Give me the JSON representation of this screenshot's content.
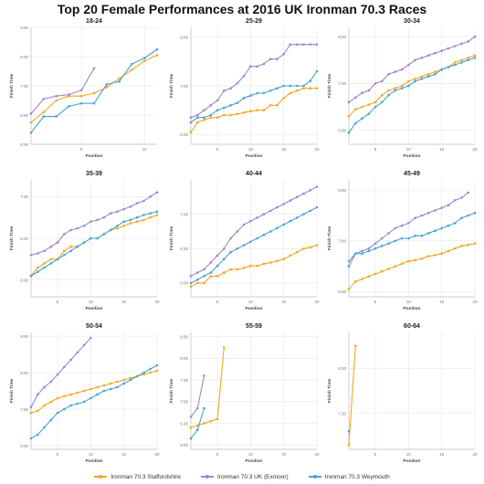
{
  "title": "Top 20 Female Performances at 2016 UK Ironman 70.3 Races",
  "colors": {
    "staffordshire": "#f5a623",
    "exmoor": "#9b87d0",
    "weymouth": "#4aa3d6",
    "grid": "#e6e6e6",
    "axis": "#bbbbbb"
  },
  "legend": [
    {
      "label": "Ironman 70.3 Staffordshire",
      "color": "#f5a623"
    },
    {
      "label": "Ironman 70.3 UK (Exmoor)",
      "color": "#9b87d0"
    },
    {
      "label": "Ironman 70.3 Weymouth",
      "color": "#4aa3d6"
    }
  ],
  "chart_data": [
    {
      "type": "line",
      "title": "18-24",
      "xlabel": "Position",
      "ylabel": "Finish Time",
      "xlim": [
        1,
        11
      ],
      "xticks": [
        5,
        10
      ],
      "ylim": [
        5,
        9
      ],
      "yticks": [
        {
          "v": 5,
          "label": "5:00"
        },
        {
          "v": 6,
          "label": "6:00"
        },
        {
          "v": 7,
          "label": "7:00"
        },
        {
          "v": 8,
          "label": "8:00"
        },
        {
          "v": 9,
          "label": "9:00"
        }
      ],
      "series": [
        {
          "name": "Ironman 70.3 Staffordshire",
          "values": [
            5.75,
            6.1,
            6.5,
            6.65,
            6.65,
            6.75,
            6.95,
            7.25,
            7.55,
            7.85,
            8.05
          ]
        },
        {
          "name": "Ironman 70.3 UK (Exmoor)",
          "values": [
            6.05,
            6.55,
            6.65,
            6.7,
            6.85,
            7.6
          ]
        },
        {
          "name": "Ironman 70.3 Weymouth",
          "values": [
            5.4,
            5.95,
            5.95,
            6.3,
            6.4,
            6.4,
            7.05,
            7.15,
            7.75,
            7.95,
            8.25
          ]
        }
      ]
    },
    {
      "type": "line",
      "title": "25-29",
      "xlabel": "Position",
      "ylabel": "Finish Time",
      "xlim": [
        1,
        20
      ],
      "xticks": [
        5,
        10,
        15,
        20
      ],
      "ylim": [
        5.8,
        8.2
      ],
      "yticks": [
        {
          "v": 6,
          "label": "6:00"
        },
        {
          "v": 7,
          "label": "7:00"
        },
        {
          "v": 8,
          "label": "8:00"
        }
      ],
      "series": [
        {
          "name": "Ironman 70.3 Staffordshire",
          "values": [
            6.05,
            6.25,
            6.3,
            6.35,
            6.35,
            6.4,
            6.4,
            6.42,
            6.45,
            6.48,
            6.5,
            6.5,
            6.6,
            6.6,
            6.75,
            6.85,
            6.9,
            6.95,
            6.95,
            6.95
          ]
        },
        {
          "name": "Ironman 70.3 UK (Exmoor)",
          "values": [
            6.35,
            6.4,
            6.5,
            6.6,
            6.7,
            6.9,
            6.95,
            7.05,
            7.2,
            7.4,
            7.4,
            7.45,
            7.55,
            7.55,
            7.65,
            7.85,
            7.85,
            7.85,
            7.85,
            7.85
          ]
        },
        {
          "name": "Ironman 70.3 Weymouth",
          "values": [
            6.25,
            6.35,
            6.35,
            6.4,
            6.5,
            6.55,
            6.6,
            6.65,
            6.75,
            6.8,
            6.85,
            6.85,
            6.9,
            6.95,
            7.0,
            7.0,
            7.0,
            7.0,
            7.1,
            7.3
          ]
        }
      ]
    },
    {
      "type": "line",
      "title": "30-34",
      "xlabel": "Position",
      "ylabel": "Finish Time",
      "xlim": [
        1,
        20
      ],
      "xticks": [
        5,
        10,
        15,
        20
      ],
      "ylim": [
        5.7,
        8.2
      ],
      "yticks": [
        {
          "v": 6,
          "label": "6:00"
        },
        {
          "v": 7,
          "label": "7:00"
        },
        {
          "v": 8,
          "label": "8:00"
        }
      ],
      "series": [
        {
          "name": "Ironman 70.3 Staffordshire",
          "values": [
            6.3,
            6.45,
            6.5,
            6.55,
            6.6,
            6.75,
            6.85,
            6.9,
            6.95,
            7.05,
            7.1,
            7.15,
            7.2,
            7.25,
            7.3,
            7.35,
            7.45,
            7.5,
            7.55,
            7.6
          ]
        },
        {
          "name": "Ironman 70.3 UK (Exmoor)",
          "values": [
            6.6,
            6.7,
            6.8,
            6.85,
            7.0,
            7.05,
            7.2,
            7.25,
            7.3,
            7.4,
            7.5,
            7.55,
            7.6,
            7.65,
            7.7,
            7.75,
            7.8,
            7.85,
            7.9,
            8.0
          ]
        },
        {
          "name": "Ironman 70.3 Weymouth",
          "values": [
            5.95,
            6.15,
            6.25,
            6.35,
            6.5,
            6.6,
            6.75,
            6.85,
            6.9,
            6.95,
            7.05,
            7.1,
            7.15,
            7.2,
            7.3,
            7.35,
            7.4,
            7.45,
            7.5,
            7.55
          ]
        }
      ]
    },
    {
      "type": "line",
      "title": "35-39",
      "xlabel": "Position",
      "ylabel": "Finish Time",
      "xlim": [
        1,
        20
      ],
      "xticks": [
        5,
        10,
        15,
        20
      ],
      "ylim": [
        5.8,
        7.2
      ],
      "yticks": [
        {
          "v": 6,
          "label": "6:00"
        },
        {
          "v": 6.5,
          "label": "6:30"
        },
        {
          "v": 7,
          "label": "7:00"
        }
      ],
      "series": [
        {
          "name": "Ironman 70.3 Staffordshire",
          "values": [
            6.05,
            6.15,
            6.2,
            6.25,
            6.25,
            6.35,
            6.4,
            6.4,
            6.45,
            6.5,
            6.5,
            6.55,
            6.6,
            6.62,
            6.65,
            6.68,
            6.7,
            6.72,
            6.75,
            6.78
          ]
        },
        {
          "name": "Ironman 70.3 UK (Exmoor)",
          "values": [
            6.3,
            6.32,
            6.35,
            6.4,
            6.45,
            6.55,
            6.6,
            6.62,
            6.65,
            6.7,
            6.72,
            6.75,
            6.8,
            6.82,
            6.85,
            6.88,
            6.92,
            6.95,
            7.0,
            7.05
          ]
        },
        {
          "name": "Ironman 70.3 Weymouth",
          "values": [
            6.05,
            6.1,
            6.15,
            6.2,
            6.25,
            6.3,
            6.35,
            6.4,
            6.45,
            6.5,
            6.5,
            6.55,
            6.6,
            6.65,
            6.7,
            6.72,
            6.75,
            6.78,
            6.8,
            6.82
          ]
        }
      ]
    },
    {
      "type": "line",
      "title": "40-44",
      "xlabel": "Position",
      "ylabel": "Finish Time",
      "xlim": [
        1,
        20
      ],
      "xticks": [
        5,
        10,
        15,
        20
      ],
      "ylim": [
        5.8,
        7.5
      ],
      "yticks": [
        {
          "v": 6,
          "label": "6:00"
        },
        {
          "v": 6.5,
          "label": "6:30"
        },
        {
          "v": 7,
          "label": "7:00"
        }
      ],
      "series": [
        {
          "name": "Ironman 70.3 Staffordshire",
          "values": [
            5.95,
            6.0,
            6.0,
            6.1,
            6.1,
            6.15,
            6.2,
            6.2,
            6.22,
            6.25,
            6.25,
            6.28,
            6.3,
            6.32,
            6.35,
            6.4,
            6.45,
            6.5,
            6.52,
            6.55
          ]
        },
        {
          "name": "Ironman 70.3 UK (Exmoor)",
          "values": [
            6.1,
            6.15,
            6.2,
            6.3,
            6.4,
            6.5,
            6.65,
            6.75,
            6.85,
            6.9,
            6.95,
            7.0,
            7.05,
            7.1,
            7.15,
            7.2,
            7.25,
            7.3,
            7.35,
            7.4
          ]
        },
        {
          "name": "Ironman 70.3 Weymouth",
          "values": [
            6.0,
            6.05,
            6.1,
            6.15,
            6.25,
            6.35,
            6.45,
            6.5,
            6.55,
            6.6,
            6.65,
            6.7,
            6.75,
            6.8,
            6.85,
            6.9,
            6.95,
            7.0,
            7.05,
            7.1
          ]
        }
      ]
    },
    {
      "type": "line",
      "title": "45-49",
      "xlabel": "Position",
      "ylabel": "Finish Time",
      "xlim": [
        1,
        20
      ],
      "xticks": [
        5,
        10,
        15,
        20
      ],
      "ylim": [
        5.9,
        8.2
      ],
      "yticks": [
        {
          "v": 6,
          "label": "6:00"
        },
        {
          "v": 7,
          "label": "7:00"
        },
        {
          "v": 8,
          "label": "8:00"
        }
      ],
      "series": [
        {
          "name": "Ironman 70.3 Staffordshire",
          "values": [
            6.05,
            6.2,
            6.25,
            6.3,
            6.35,
            6.4,
            6.45,
            6.5,
            6.55,
            6.6,
            6.62,
            6.65,
            6.7,
            6.72,
            6.75,
            6.8,
            6.85,
            6.9,
            6.92,
            6.95
          ]
        },
        {
          "name": "Ironman 70.3 UK (Exmoor)",
          "values": [
            6.6,
            6.75,
            6.8,
            6.85,
            6.95,
            7.05,
            7.15,
            7.25,
            7.3,
            7.35,
            7.45,
            7.5,
            7.55,
            7.6,
            7.65,
            7.7,
            7.8,
            7.85,
            7.95
          ]
        },
        {
          "name": "Ironman 70.3 Weymouth",
          "values": [
            6.5,
            6.75,
            6.75,
            6.8,
            6.85,
            6.9,
            6.95,
            7.0,
            7.05,
            7.05,
            7.1,
            7.1,
            7.15,
            7.2,
            7.25,
            7.3,
            7.35,
            7.45,
            7.5,
            7.55
          ]
        }
      ]
    },
    {
      "type": "line",
      "title": "50-54",
      "xlabel": "Position",
      "ylabel": "Finish Time",
      "xlim": [
        1,
        20
      ],
      "xticks": [
        5,
        10,
        15,
        20
      ],
      "ylim": [
        5.9,
        9.1
      ],
      "yticks": [
        {
          "v": 6,
          "label": "6:00"
        },
        {
          "v": 7,
          "label": "7:00"
        },
        {
          "v": 8,
          "label": "8:00"
        },
        {
          "v": 9,
          "label": "9:00"
        }
      ],
      "series": [
        {
          "name": "Ironman 70.3 Staffordshire",
          "values": [
            6.9,
            6.95,
            7.1,
            7.2,
            7.3,
            7.35,
            7.4,
            7.45,
            7.5,
            7.55,
            7.6,
            7.65,
            7.7,
            7.75,
            7.8,
            7.85,
            7.9,
            7.95,
            8.0,
            8.05
          ]
        },
        {
          "name": "Ironman 70.3 UK (Exmoor)",
          "values": [
            7.05,
            7.4,
            7.6,
            7.75,
            7.95,
            8.15,
            8.35,
            8.55,
            8.75,
            8.95
          ]
        },
        {
          "name": "Ironman 70.3 Weymouth",
          "values": [
            6.2,
            6.3,
            6.5,
            6.7,
            6.9,
            7.0,
            7.1,
            7.15,
            7.2,
            7.3,
            7.4,
            7.5,
            7.55,
            7.6,
            7.7,
            7.8,
            7.9,
            8.0,
            8.1,
            8.2
          ]
        }
      ]
    },
    {
      "type": "line",
      "title": "55-59",
      "xlabel": "Position",
      "ylabel": "Finish Time",
      "xlim": [
        1,
        20
      ],
      "xticks": [
        5,
        10,
        15,
        20
      ],
      "ylim": [
        5.9,
        8.6
      ],
      "yticks": [
        {
          "v": 6,
          "label": "6:00"
        },
        {
          "v": 6.5,
          "label": "6:30"
        },
        {
          "v": 7,
          "label": "7:00"
        },
        {
          "v": 7.5,
          "label": "7:30"
        },
        {
          "v": 8,
          "label": "8:00"
        },
        {
          "v": 8.5,
          "label": "8:30"
        }
      ],
      "series": [
        {
          "name": "Ironman 70.3 Staffordshire",
          "values": [
            6.4,
            6.45,
            6.5,
            6.55,
            6.6,
            8.25
          ]
        },
        {
          "name": "Ironman 70.3 UK (Exmoor)",
          "values": [
            6.65,
            6.85,
            7.6
          ]
        },
        {
          "name": "Ironman 70.3 Weymouth",
          "values": [
            6.15,
            6.35,
            6.85
          ]
        }
      ]
    },
    {
      "type": "line",
      "title": "60-64",
      "xlabel": "Position",
      "ylabel": "Finish Time",
      "xlim": [
        1,
        20
      ],
      "xticks": [
        5,
        10,
        15,
        20
      ],
      "ylim": [
        7.1,
        8.4
      ],
      "yticks": [
        {
          "v": 7.5,
          "label": "7:30"
        },
        {
          "v": 8,
          "label": "8:00"
        }
      ],
      "series": [
        {
          "name": "Ironman 70.3 Staffordshire",
          "values": [
            7.15,
            8.25
          ]
        },
        {
          "name": "Ironman 70.3 UK (Exmoor)",
          "values": []
        },
        {
          "name": "Ironman 70.3 Weymouth",
          "values": [
            7.3
          ]
        }
      ]
    }
  ]
}
